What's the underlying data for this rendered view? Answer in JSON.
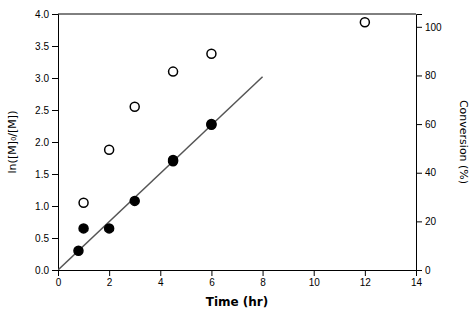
{
  "chart_data": {
    "type": "scatter",
    "xlabel": "Time (hr)",
    "ylabel": "ln([M]₀/[M])",
    "y2label": "Conversion (%)",
    "xlim": [
      0,
      14
    ],
    "xticks": [
      0,
      2,
      4,
      6,
      8,
      10,
      12,
      14
    ],
    "ylim": [
      0.0,
      4.0
    ],
    "yticks": [
      {
        "value": 0.0,
        "label": "0.0"
      },
      0.5,
      {
        "value": 1.0,
        "label": "1.0"
      },
      1.5,
      {
        "value": 2.0,
        "label": "2.0"
      },
      2.5,
      {
        "value": 3.0,
        "label": "3.0"
      },
      3.5,
      {
        "value": 4.0,
        "label": "4.0"
      }
    ],
    "y2lim": [
      0,
      105.263
    ],
    "y2ticks": [
      0,
      20,
      40,
      60,
      80,
      100
    ],
    "grid": false,
    "series": [
      {
        "type": "line",
        "color": "#555555",
        "x": [
          0.0,
          8.0
        ],
        "values": [
          0.0,
          3.02
        ]
      },
      {
        "type": "scatter",
        "marker": "circle",
        "color": "black",
        "x": [
          0.8,
          1.0,
          2.0,
          3.0,
          4.5,
          4.5,
          6.0,
          6.0
        ],
        "values": [
          0.3,
          0.65,
          0.65,
          1.08,
          1.7,
          1.72,
          2.27,
          2.28
        ]
      },
      {
        "type": "scatter",
        "marker": "open-circle",
        "color": "black",
        "x": [
          1.0,
          2.0,
          3.0,
          4.5,
          6.0,
          12.0
        ],
        "values": [
          1.05,
          1.88,
          2.55,
          3.1,
          3.38,
          3.87
        ]
      }
    ]
  }
}
